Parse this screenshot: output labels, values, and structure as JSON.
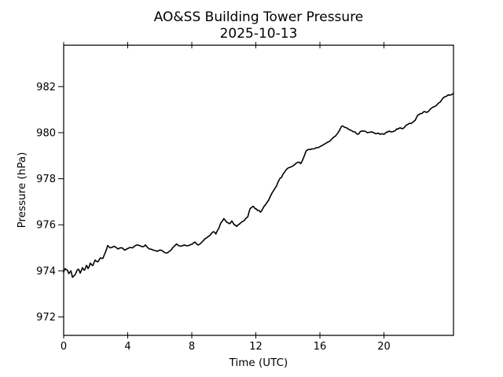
{
  "figure": {
    "background": "#ffffff",
    "text_color": "#000000",
    "spine_color": "#000000"
  },
  "chart_data": {
    "type": "line",
    "title": "AO&SS Building Tower Pressure",
    "subtitle": "2025-10-13",
    "xlabel": "Time (UTC)",
    "ylabel": "Pressure (hPa)",
    "xlim": [
      0,
      24.34
    ],
    "ylim": [
      971.2,
      983.8
    ],
    "xticks": [
      0,
      4,
      8,
      12,
      16,
      20
    ],
    "yticks": [
      972,
      974,
      976,
      978,
      980,
      982
    ],
    "grid": false,
    "legend_position": "none",
    "line_color": "#000000",
    "line_width": 1.6,
    "series": [
      {
        "name": "tower_pressure_hpa",
        "x": [
          0.0,
          0.1,
          0.2,
          0.32,
          0.45,
          0.55,
          0.7,
          0.82,
          0.93,
          1.03,
          1.18,
          1.3,
          1.42,
          1.52,
          1.67,
          1.82,
          1.97,
          2.15,
          2.3,
          2.45,
          2.6,
          2.75,
          2.9,
          3.15,
          3.4,
          3.65,
          3.8,
          4.0,
          4.3,
          4.6,
          4.9,
          5.1,
          5.35,
          5.6,
          5.85,
          6.1,
          6.35,
          6.6,
          6.8,
          7.05,
          7.3,
          7.55,
          7.8,
          8.05,
          8.2,
          8.4,
          8.7,
          8.95,
          9.15,
          9.35,
          9.5,
          9.7,
          9.85,
          10.0,
          10.2,
          10.35,
          10.5,
          10.65,
          10.8,
          11.0,
          11.25,
          11.5,
          11.65,
          11.8,
          11.95,
          12.1,
          12.3,
          12.45,
          12.6,
          12.8,
          12.95,
          13.1,
          13.3,
          13.45,
          13.6,
          13.75,
          13.9,
          14.15,
          14.4,
          14.65,
          14.8,
          15.0,
          15.15,
          15.4,
          15.65,
          15.9,
          16.15,
          16.4,
          16.6,
          16.85,
          17.1,
          17.35,
          17.5,
          17.7,
          17.95,
          18.2,
          18.35,
          18.5,
          18.7,
          18.95,
          19.2,
          19.35,
          19.6,
          19.75,
          20.0,
          20.17,
          20.3,
          20.45,
          20.65,
          20.8,
          20.95,
          21.15,
          21.3,
          21.45,
          21.7,
          21.95,
          22.1,
          22.25,
          22.5,
          22.65,
          22.9,
          23.15,
          23.4,
          23.65,
          23.9,
          24.1,
          24.33
        ],
        "y": [
          973.95,
          974.1,
          974.05,
          973.88,
          974.0,
          973.72,
          973.82,
          974.0,
          974.07,
          973.9,
          974.14,
          974.03,
          974.24,
          974.1,
          974.34,
          974.23,
          974.47,
          974.4,
          974.57,
          974.54,
          974.8,
          975.1,
          975.0,
          975.07,
          974.95,
          975.0,
          974.9,
          974.97,
          975.0,
          975.13,
          975.05,
          975.13,
          974.95,
          974.9,
          974.85,
          974.9,
          974.78,
          974.85,
          975.0,
          975.17,
          975.07,
          975.13,
          975.1,
          975.17,
          975.25,
          975.12,
          975.3,
          975.45,
          975.55,
          975.7,
          975.6,
          975.87,
          976.12,
          976.27,
          976.1,
          976.05,
          976.17,
          976.0,
          975.93,
          976.05,
          976.17,
          976.35,
          976.72,
          976.8,
          976.7,
          976.63,
          976.55,
          976.72,
          976.87,
          977.07,
          977.3,
          977.48,
          977.7,
          977.95,
          978.05,
          978.25,
          978.4,
          978.5,
          978.6,
          978.72,
          978.65,
          978.95,
          979.22,
          979.27,
          979.3,
          979.35,
          979.45,
          979.55,
          979.62,
          979.8,
          979.97,
          980.28,
          980.25,
          980.2,
          980.1,
          980.03,
          979.93,
          980.03,
          980.07,
          980.0,
          980.03,
          980.0,
          979.97,
          979.93,
          979.93,
          980.03,
          980.07,
          980.03,
          980.07,
          980.17,
          980.2,
          980.17,
          980.25,
          980.34,
          980.4,
          980.54,
          980.75,
          980.82,
          980.92,
          980.88,
          981.03,
          981.13,
          981.28,
          981.47,
          981.58,
          981.63,
          981.7
        ]
      }
    ]
  }
}
